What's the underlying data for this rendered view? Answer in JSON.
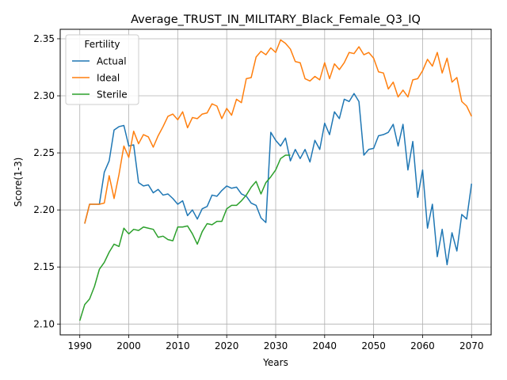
{
  "chart_data": {
    "type": "line",
    "title": "Average_TRUST_IN_MILITARY_Black_Female_Q3_IQ",
    "xlabel": "Years",
    "ylabel": "Score(1-3)",
    "xlim": [
      1986.0,
      2074.0
    ],
    "ylim": [
      2.0905,
      2.3583
    ],
    "xticks": [
      1990,
      2000,
      2010,
      2020,
      2030,
      2040,
      2050,
      2060,
      2070
    ],
    "yticks": [
      2.1,
      2.15,
      2.2,
      2.25,
      2.3,
      2.35
    ],
    "ytick_labels": [
      "2.10",
      "2.15",
      "2.20",
      "2.25",
      "2.30",
      "2.35"
    ],
    "grid": true,
    "legend": {
      "title": "Fertility",
      "placement": "upper-left"
    },
    "series": [
      {
        "name": "Actual",
        "color": "#1f77b4",
        "x": [
          1991,
          1992,
          1993,
          1994,
          1995,
          1996,
          1997,
          1998,
          1999,
          2000,
          2001,
          2002,
          2003,
          2004,
          2005,
          2006,
          2007,
          2008,
          2009,
          2010,
          2011,
          2012,
          2013,
          2014,
          2015,
          2016,
          2017,
          2018,
          2019,
          2020,
          2021,
          2022,
          2023,
          2024,
          2025,
          2026,
          2027,
          2028,
          2029,
          2030,
          2031,
          2032,
          2033,
          2034,
          2035,
          2036,
          2037,
          2038,
          2039,
          2040,
          2041,
          2042,
          2043,
          2044,
          2045,
          2046,
          2047,
          2048,
          2049,
          2050,
          2051,
          2052,
          2053,
          2054,
          2055,
          2056,
          2057,
          2058,
          2059,
          2060,
          2061,
          2062,
          2063,
          2064,
          2065,
          2066,
          2067,
          2068,
          2069,
          2070
        ],
        "values": [
          2.188,
          2.205,
          2.205,
          2.205,
          2.233,
          2.243,
          2.27,
          2.273,
          2.274,
          2.256,
          2.257,
          2.224,
          2.221,
          2.222,
          2.215,
          2.218,
          2.213,
          2.214,
          2.21,
          2.205,
          2.208,
          2.195,
          2.2,
          2.192,
          2.201,
          2.203,
          2.213,
          2.212,
          2.217,
          2.221,
          2.219,
          2.22,
          2.214,
          2.212,
          2.206,
          2.204,
          2.193,
          2.189,
          2.268,
          2.261,
          2.256,
          2.263,
          2.243,
          2.253,
          2.245,
          2.253,
          2.242,
          2.261,
          2.253,
          2.276,
          2.266,
          2.286,
          2.28,
          2.297,
          2.295,
          2.302,
          2.295,
          2.248,
          2.253,
          2.254,
          2.265,
          2.266,
          2.268,
          2.275,
          2.256,
          2.275,
          2.235,
          2.26,
          2.211,
          2.235,
          2.184,
          2.205,
          2.159,
          2.183,
          2.152,
          2.18,
          2.164,
          2.196,
          2.192,
          2.223
        ]
      },
      {
        "name": "Ideal",
        "color": "#ff7f0e",
        "x": [
          1991,
          1992,
          1993,
          1994,
          1995,
          1996,
          1997,
          1998,
          1999,
          2000,
          2001,
          2002,
          2003,
          2004,
          2005,
          2006,
          2007,
          2008,
          2009,
          2010,
          2011,
          2012,
          2013,
          2014,
          2015,
          2016,
          2017,
          2018,
          2019,
          2020,
          2021,
          2022,
          2023,
          2024,
          2025,
          2026,
          2027,
          2028,
          2029,
          2030,
          2031,
          2032,
          2033,
          2034,
          2035,
          2036,
          2037,
          2038,
          2039,
          2040,
          2041,
          2042,
          2043,
          2044,
          2045,
          2046,
          2047,
          2048,
          2049,
          2050,
          2051,
          2052,
          2053,
          2054,
          2055,
          2056,
          2057,
          2058,
          2059,
          2060,
          2061,
          2062,
          2063,
          2064,
          2065,
          2066,
          2067,
          2068,
          2069,
          2070
        ],
        "values": [
          2.188,
          2.205,
          2.205,
          2.205,
          2.206,
          2.23,
          2.21,
          2.231,
          2.256,
          2.246,
          2.269,
          2.258,
          2.266,
          2.264,
          2.255,
          2.265,
          2.273,
          2.282,
          2.284,
          2.279,
          2.286,
          2.272,
          2.281,
          2.28,
          2.284,
          2.285,
          2.293,
          2.291,
          2.28,
          2.289,
          2.283,
          2.297,
          2.294,
          2.315,
          2.316,
          2.334,
          2.339,
          2.336,
          2.342,
          2.338,
          2.349,
          2.346,
          2.341,
          2.33,
          2.329,
          2.315,
          2.313,
          2.317,
          2.314,
          2.329,
          2.315,
          2.328,
          2.323,
          2.329,
          2.338,
          2.337,
          2.343,
          2.336,
          2.338,
          2.333,
          2.321,
          2.32,
          2.306,
          2.312,
          2.299,
          2.305,
          2.299,
          2.314,
          2.315,
          2.322,
          2.332,
          2.326,
          2.338,
          2.32,
          2.333,
          2.312,
          2.316,
          2.295,
          2.291,
          2.282
        ]
      },
      {
        "name": "Sterile",
        "color": "#2ca02c",
        "x": [
          1990,
          1991,
          1992,
          1993,
          1994,
          1995,
          1996,
          1997,
          1998,
          1999,
          2000,
          2001,
          2002,
          2003,
          2004,
          2005,
          2006,
          2007,
          2008,
          2009,
          2010,
          2011,
          2012,
          2013,
          2014,
          2015,
          2016,
          2017,
          2018,
          2019,
          2020,
          2021,
          2022,
          2023,
          2024,
          2025,
          2026,
          2027,
          2028,
          2029,
          2030,
          2031,
          2032,
          2033
        ],
        "values": [
          2.103,
          2.117,
          2.122,
          2.133,
          2.148,
          2.154,
          2.163,
          2.17,
          2.168,
          2.184,
          2.179,
          2.183,
          2.182,
          2.185,
          2.184,
          2.183,
          2.176,
          2.177,
          2.174,
          2.173,
          2.185,
          2.185,
          2.186,
          2.179,
          2.17,
          2.181,
          2.188,
          2.187,
          2.19,
          2.19,
          2.201,
          2.204,
          2.204,
          2.208,
          2.213,
          2.22,
          2.225,
          2.214,
          2.224,
          2.229,
          2.235,
          2.245,
          2.248,
          2.248
        ]
      }
    ]
  }
}
